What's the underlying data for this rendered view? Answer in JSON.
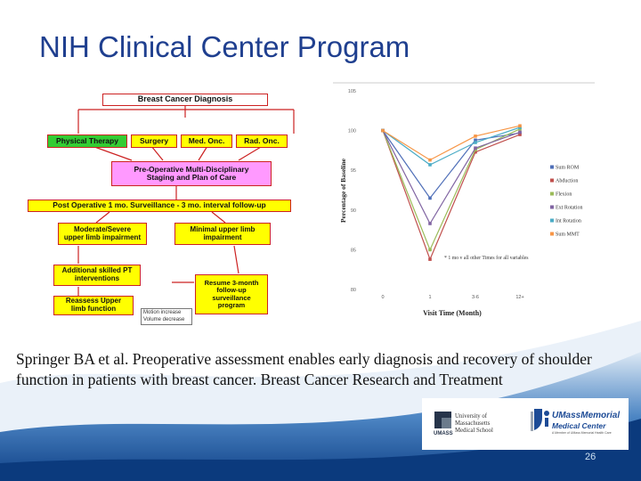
{
  "title": "NIH Clinical Center Program",
  "flowchart": {
    "diagnosis": "Breast Cancer Diagnosis",
    "physical_therapy": "Physical Therapy",
    "surgery": "Surgery",
    "med_onc": "Med. Onc.",
    "rad_onc": "Rad. Onc.",
    "pre_op_1": "Pre-Operative Multi-Disciplinary",
    "pre_op_2": "Staging and Plan of Care",
    "post_op": "Post Operative 1 mo. Surveillance - 3 mo. interval follow-up",
    "moderate_1": "Moderate/Severe",
    "moderate_2": "upper limb impairment",
    "minimal_1": "Minimal upper limb",
    "minimal_2": "impairment",
    "additional_1": "Additional skilled PT",
    "additional_2": "interventions",
    "reassess_1": "Reassess Upper",
    "reassess_2": "limb function",
    "resume_1": "Resume 3-month",
    "resume_2": "follow-up",
    "resume_3": "surveillance",
    "resume_4": "program",
    "legend_1": "Motion increase",
    "legend_2": "Volume decrease",
    "colors": {
      "red": "#cc2222",
      "green": "#33cc33",
      "yellow": "#ffff00",
      "pink": "#ff99ff"
    }
  },
  "chart_data": {
    "type": "line",
    "ylabel": "Percentage of Baseline",
    "xlabel": "Visit Time (Month)",
    "categories": [
      "0",
      "1",
      "3-6",
      "12+"
    ],
    "y_ticks": [
      "105",
      "100",
      "95",
      "90",
      "85",
      "80"
    ],
    "ylim": [
      80,
      105
    ],
    "series": [
      {
        "name": "Sum ROM",
        "color": "#4f6fb8",
        "values": [
          100,
          91.5,
          98.8,
          99.7
        ]
      },
      {
        "name": "Abduction",
        "color": "#c0504d",
        "values": [
          100,
          83.8,
          97.3,
          99.5
        ]
      },
      {
        "name": "Flexion",
        "color": "#9bbb59",
        "values": [
          100,
          85,
          97.6,
          100.2
        ]
      },
      {
        "name": "Ext Rotation",
        "color": "#8064a2",
        "values": [
          100,
          88.3,
          97.8,
          99.8
        ]
      },
      {
        "name": "Int Rotation",
        "color": "#4bacc6",
        "values": [
          100,
          95.7,
          98.5,
          100.4
        ]
      },
      {
        "name": "Sum MMT",
        "color": "#f79646",
        "values": [
          100,
          96.3,
          99.3,
          100.6
        ]
      }
    ],
    "annotation": "* 1 mo v all other Times for all variables",
    "legend_position": "right"
  },
  "citation": "Springer BA et al. Preoperative assessment enables early diagnosis and recovery of shoulder function in patients with breast cancer. Breast Cancer Research and Treatment",
  "logos": {
    "umass_1": "University of",
    "umass_2": "Massachusetts",
    "umass_3": "Medical School",
    "umass_abbr": "UMASS",
    "memorial_1": "UMassMemorial",
    "memorial_2": "Medical Center",
    "memorial_3": "A Member of UMass Memorial Health Care"
  },
  "page_number": "26"
}
